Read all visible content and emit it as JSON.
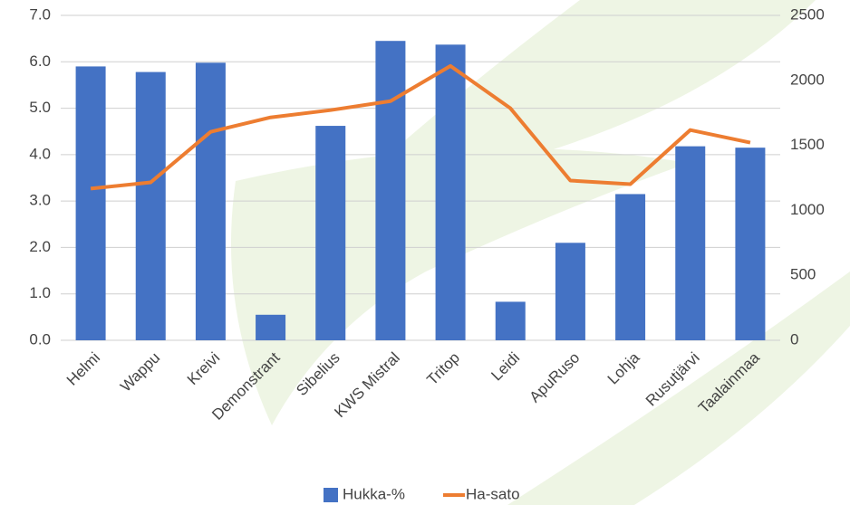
{
  "chart_data": {
    "type": "bar-line",
    "categories": [
      "Helmi",
      "Wappu",
      "Kreivi",
      "Demonstrant",
      "Sibelius",
      "KWS Mistral",
      "Tritop",
      "Leidi",
      "ApuRuso",
      "Lohja",
      "Rusutjärvi",
      "Taalainmaa"
    ],
    "series": [
      {
        "name": "Hukka-%",
        "type": "bar",
        "color": "#4472c4",
        "values": [
          5.9,
          5.78,
          5.98,
          0.55,
          4.62,
          6.45,
          6.37,
          0.83,
          2.1,
          3.15,
          4.18,
          4.15
        ]
      },
      {
        "name": "Ha-sato",
        "type": "line",
        "axis": "y2",
        "color": "#ed7d31",
        "values": [
          1167,
          1215,
          1604,
          1715,
          1771,
          1840,
          2111,
          1785,
          1229,
          1201,
          1618,
          1521
        ]
      }
    ],
    "ylim": [
      0,
      7
    ],
    "yticks": [
      {
        "value": 0,
        "label": "0.0"
      },
      {
        "value": 1,
        "label": "1.0"
      },
      {
        "value": 2,
        "label": "2.0"
      },
      {
        "value": 3,
        "label": "3.0"
      },
      {
        "value": 4,
        "label": "4.0"
      },
      {
        "value": 5,
        "label": "5.0"
      },
      {
        "value": 6,
        "label": "6.0"
      },
      {
        "value": 7,
        "label": "7.0"
      }
    ],
    "y2lim": [
      0,
      2500
    ],
    "y2ticks": [
      0,
      500,
      1000,
      1500,
      2000,
      2500
    ],
    "grid": true,
    "legend": "bottom"
  }
}
